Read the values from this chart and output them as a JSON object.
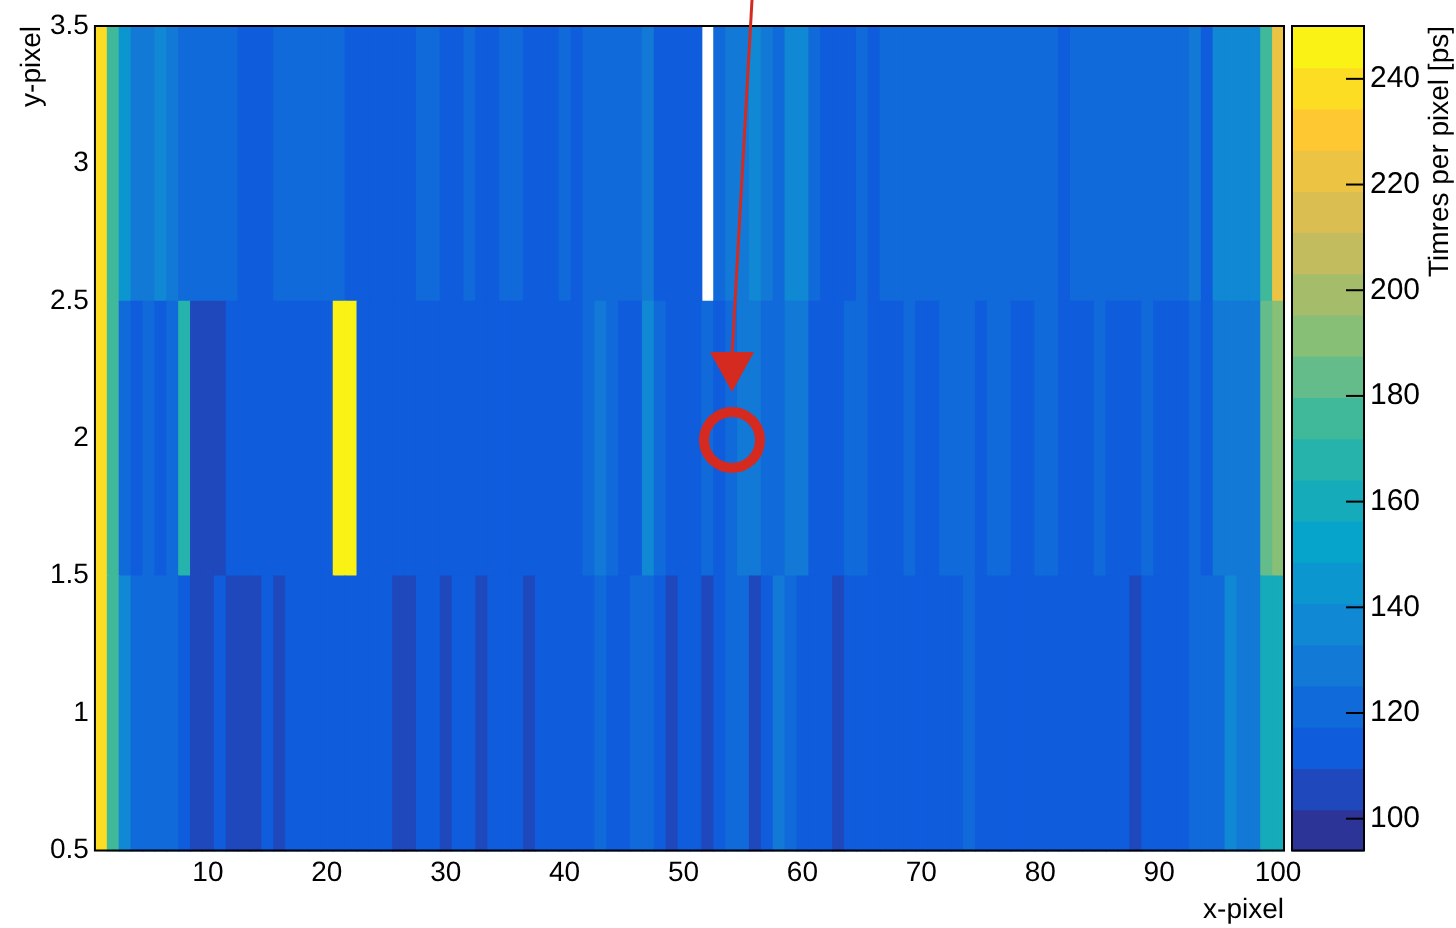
{
  "chart_data": {
    "type": "heatmap",
    "xlabel": "x-pixel",
    "ylabel": "y-pixel",
    "clabel": "Timres per pixel [ps]",
    "xlim": [
      0.5,
      100.5
    ],
    "xticks": [
      10,
      20,
      30,
      40,
      50,
      60,
      70,
      80,
      90,
      100
    ],
    "ylim": [
      0.5,
      3.5
    ],
    "yticks": [
      0.5,
      1,
      1.5,
      2,
      2.5,
      3,
      3.5
    ],
    "clim": [
      94,
      250
    ],
    "cticks": [
      100,
      120,
      140,
      160,
      180,
      200,
      220,
      240
    ],
    "cells": [
      [
        235,
        176,
        145,
        129,
        129,
        137,
        129,
        121,
        121,
        121,
        121,
        121,
        113,
        113,
        113,
        121,
        121,
        121,
        121,
        121,
        121,
        113,
        113,
        113,
        113,
        113,
        113,
        121,
        121,
        113,
        113,
        121,
        113,
        113,
        121,
        121,
        113,
        113,
        113,
        121,
        113,
        121,
        121,
        121,
        121,
        121,
        129,
        113,
        113,
        113,
        113,
        null,
        121,
        129,
        129,
        137,
        129,
        121,
        137,
        137,
        121,
        113,
        113,
        113,
        121,
        113,
        121,
        121,
        121,
        121,
        121,
        121,
        121,
        121,
        121,
        121,
        121,
        121,
        121,
        121,
        121,
        113,
        121,
        121,
        121,
        121,
        121,
        121,
        121,
        121,
        121,
        121,
        129,
        113,
        137,
        137,
        137,
        137,
        176,
        222
      ],
      [
        235,
        176,
        121,
        113,
        121,
        113,
        121,
        168,
        106,
        106,
        106,
        113,
        113,
        113,
        113,
        113,
        113,
        113,
        113,
        113,
        246,
        246,
        113,
        113,
        113,
        113,
        113,
        113,
        113,
        113,
        113,
        113,
        113,
        113,
        113,
        113,
        113,
        113,
        113,
        113,
        113,
        121,
        129,
        121,
        113,
        113,
        137,
        121,
        113,
        113,
        113,
        121,
        113,
        121,
        129,
        129,
        121,
        121,
        129,
        129,
        113,
        113,
        113,
        121,
        121,
        113,
        113,
        113,
        121,
        113,
        113,
        121,
        121,
        121,
        113,
        121,
        121,
        113,
        113,
        121,
        121,
        113,
        113,
        113,
        121,
        113,
        113,
        113,
        121,
        113,
        113,
        113,
        121,
        113,
        129,
        129,
        129,
        129,
        184,
        192
      ],
      [
        235,
        176,
        137,
        121,
        121,
        121,
        121,
        113,
        106,
        106,
        113,
        106,
        106,
        106,
        113,
        106,
        113,
        113,
        113,
        113,
        113,
        113,
        113,
        113,
        113,
        106,
        106,
        113,
        113,
        106,
        113,
        113,
        106,
        113,
        113,
        113,
        106,
        113,
        113,
        113,
        113,
        113,
        121,
        113,
        113,
        121,
        121,
        113,
        106,
        113,
        113,
        106,
        113,
        121,
        121,
        106,
        113,
        129,
        121,
        113,
        113,
        113,
        106,
        113,
        113,
        113,
        113,
        113,
        113,
        113,
        113,
        113,
        113,
        121,
        113,
        113,
        113,
        113,
        113,
        113,
        113,
        113,
        113,
        113,
        113,
        113,
        113,
        106,
        113,
        113,
        113,
        113,
        121,
        121,
        121,
        137,
        129,
        129,
        160,
        160
      ]
    ]
  }
}
